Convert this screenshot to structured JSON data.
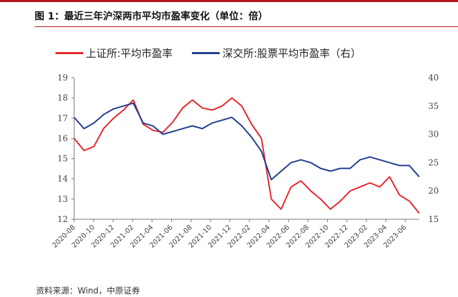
{
  "header": {
    "title": "图 1：最近三年沪深两市平均市盈率变化（单位：倍）"
  },
  "footer": {
    "source": "资料来源：Wind，中原证券"
  },
  "colors": {
    "accent": "#b3141b",
    "series_red": "#e8272b",
    "series_blue": "#1f3c8f"
  },
  "chart_data": {
    "type": "line",
    "title": "",
    "legend_position": "top",
    "grid": false,
    "x_tick_labels": [
      "2020-08",
      "2020-10",
      "2020-12",
      "2021-02",
      "2021-04",
      "2021-06",
      "2021-08",
      "2021-10",
      "2021-12",
      "2022-02",
      "2022-04",
      "2022-06",
      "2022-08",
      "2022-10",
      "2022-12",
      "2023-02",
      "2023-04",
      "2023-06"
    ],
    "y_left": {
      "ticks": [
        12,
        13,
        14,
        15,
        16,
        17,
        18,
        19
      ],
      "range": [
        12,
        19
      ]
    },
    "y_right": {
      "ticks": [
        15,
        20,
        25,
        30,
        35,
        40
      ],
      "range": [
        15,
        40
      ]
    },
    "x": [
      "2020-08",
      "2020-09",
      "2020-10",
      "2020-11",
      "2020-12",
      "2021-01",
      "2021-02",
      "2021-03",
      "2021-04",
      "2021-05",
      "2021-06",
      "2021-07",
      "2021-08",
      "2021-09",
      "2021-10",
      "2021-11",
      "2021-12",
      "2022-01",
      "2022-02",
      "2022-03",
      "2022-04",
      "2022-05",
      "2022-06",
      "2022-07",
      "2022-08",
      "2022-09",
      "2022-10",
      "2022-11",
      "2022-12",
      "2023-01",
      "2023-02",
      "2023-03",
      "2023-04",
      "2023-05",
      "2023-06",
      "2023-07"
    ],
    "series": [
      {
        "name": "上证所:平均市盈率",
        "axis": "left",
        "color": "#e8272b",
        "values": [
          16.0,
          15.4,
          15.6,
          16.5,
          17.0,
          17.4,
          17.9,
          16.7,
          16.4,
          16.3,
          16.8,
          17.5,
          17.9,
          17.5,
          17.4,
          17.6,
          18.0,
          17.6,
          16.7,
          16.0,
          13.0,
          12.5,
          13.6,
          13.9,
          13.4,
          13.0,
          12.5,
          12.9,
          13.4,
          13.6,
          13.8,
          13.6,
          14.1,
          13.2,
          12.9,
          12.3
        ]
      },
      {
        "name": "深交所:股票平均市盈率（右）",
        "axis": "right",
        "color": "#1f3c8f",
        "values": [
          33.0,
          31.0,
          32.0,
          33.5,
          34.5,
          35.0,
          35.5,
          32.0,
          31.5,
          30.0,
          30.5,
          31.0,
          31.5,
          31.0,
          32.0,
          32.5,
          33.0,
          31.5,
          29.5,
          27.0,
          22.0,
          23.5,
          25.0,
          25.5,
          25.0,
          24.0,
          23.5,
          24.0,
          24.0,
          25.5,
          26.0,
          25.5,
          25.0,
          24.5,
          24.5,
          22.5
        ]
      }
    ]
  }
}
